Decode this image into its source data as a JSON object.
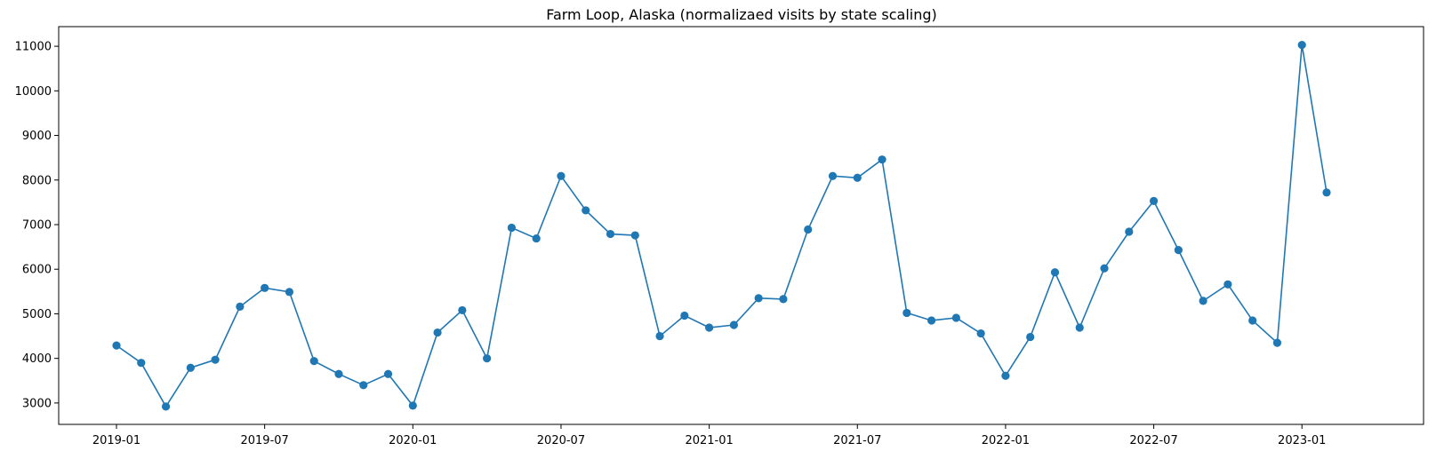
{
  "chart_data": {
    "type": "line",
    "title": "Farm Loop, Alaska (normalizaed visits by state scaling)",
    "xlabel": "",
    "ylabel": "",
    "color": "#1f77b4",
    "marker": "circle",
    "grid": false,
    "x": [
      "2019-01",
      "2019-02",
      "2019-03",
      "2019-04",
      "2019-05",
      "2019-06",
      "2019-07",
      "2019-08",
      "2019-09",
      "2019-10",
      "2019-11",
      "2019-12",
      "2020-01",
      "2020-02",
      "2020-03",
      "2020-04",
      "2020-05",
      "2020-06",
      "2020-07",
      "2020-08",
      "2020-09",
      "2020-10",
      "2020-11",
      "2020-12",
      "2021-01",
      "2021-02",
      "2021-03",
      "2021-04",
      "2021-05",
      "2021-06",
      "2021-07",
      "2021-08",
      "2021-09",
      "2021-10",
      "2021-11",
      "2021-12",
      "2022-01",
      "2022-02",
      "2022-03",
      "2022-04",
      "2022-05",
      "2022-06",
      "2022-07",
      "2022-08",
      "2022-09",
      "2022-10",
      "2022-11",
      "2022-12",
      "2023-01",
      "2023-02"
    ],
    "values": [
      4290,
      3900,
      2920,
      3790,
      3970,
      5160,
      5580,
      5490,
      3940,
      3650,
      3400,
      3650,
      2940,
      4580,
      5080,
      4000,
      6930,
      6690,
      8090,
      7320,
      6790,
      6760,
      4500,
      4960,
      4690,
      4750,
      5350,
      5330,
      6890,
      8090,
      8050,
      8460,
      5020,
      4850,
      4910,
      4560,
      3610,
      4480,
      5930,
      4690,
      6020,
      6840,
      7530,
      6430,
      5290,
      5660,
      4850,
      4350,
      11030,
      7720
    ],
    "ylim": [
      2520,
      11440
    ],
    "yticks": [
      3000,
      4000,
      5000,
      6000,
      7000,
      8000,
      9000,
      10000,
      11000
    ],
    "xticks": [
      "2019-01",
      "2019-07",
      "2020-01",
      "2020-07",
      "2021-01",
      "2021-07",
      "2022-01",
      "2022-07",
      "2023-01"
    ]
  }
}
